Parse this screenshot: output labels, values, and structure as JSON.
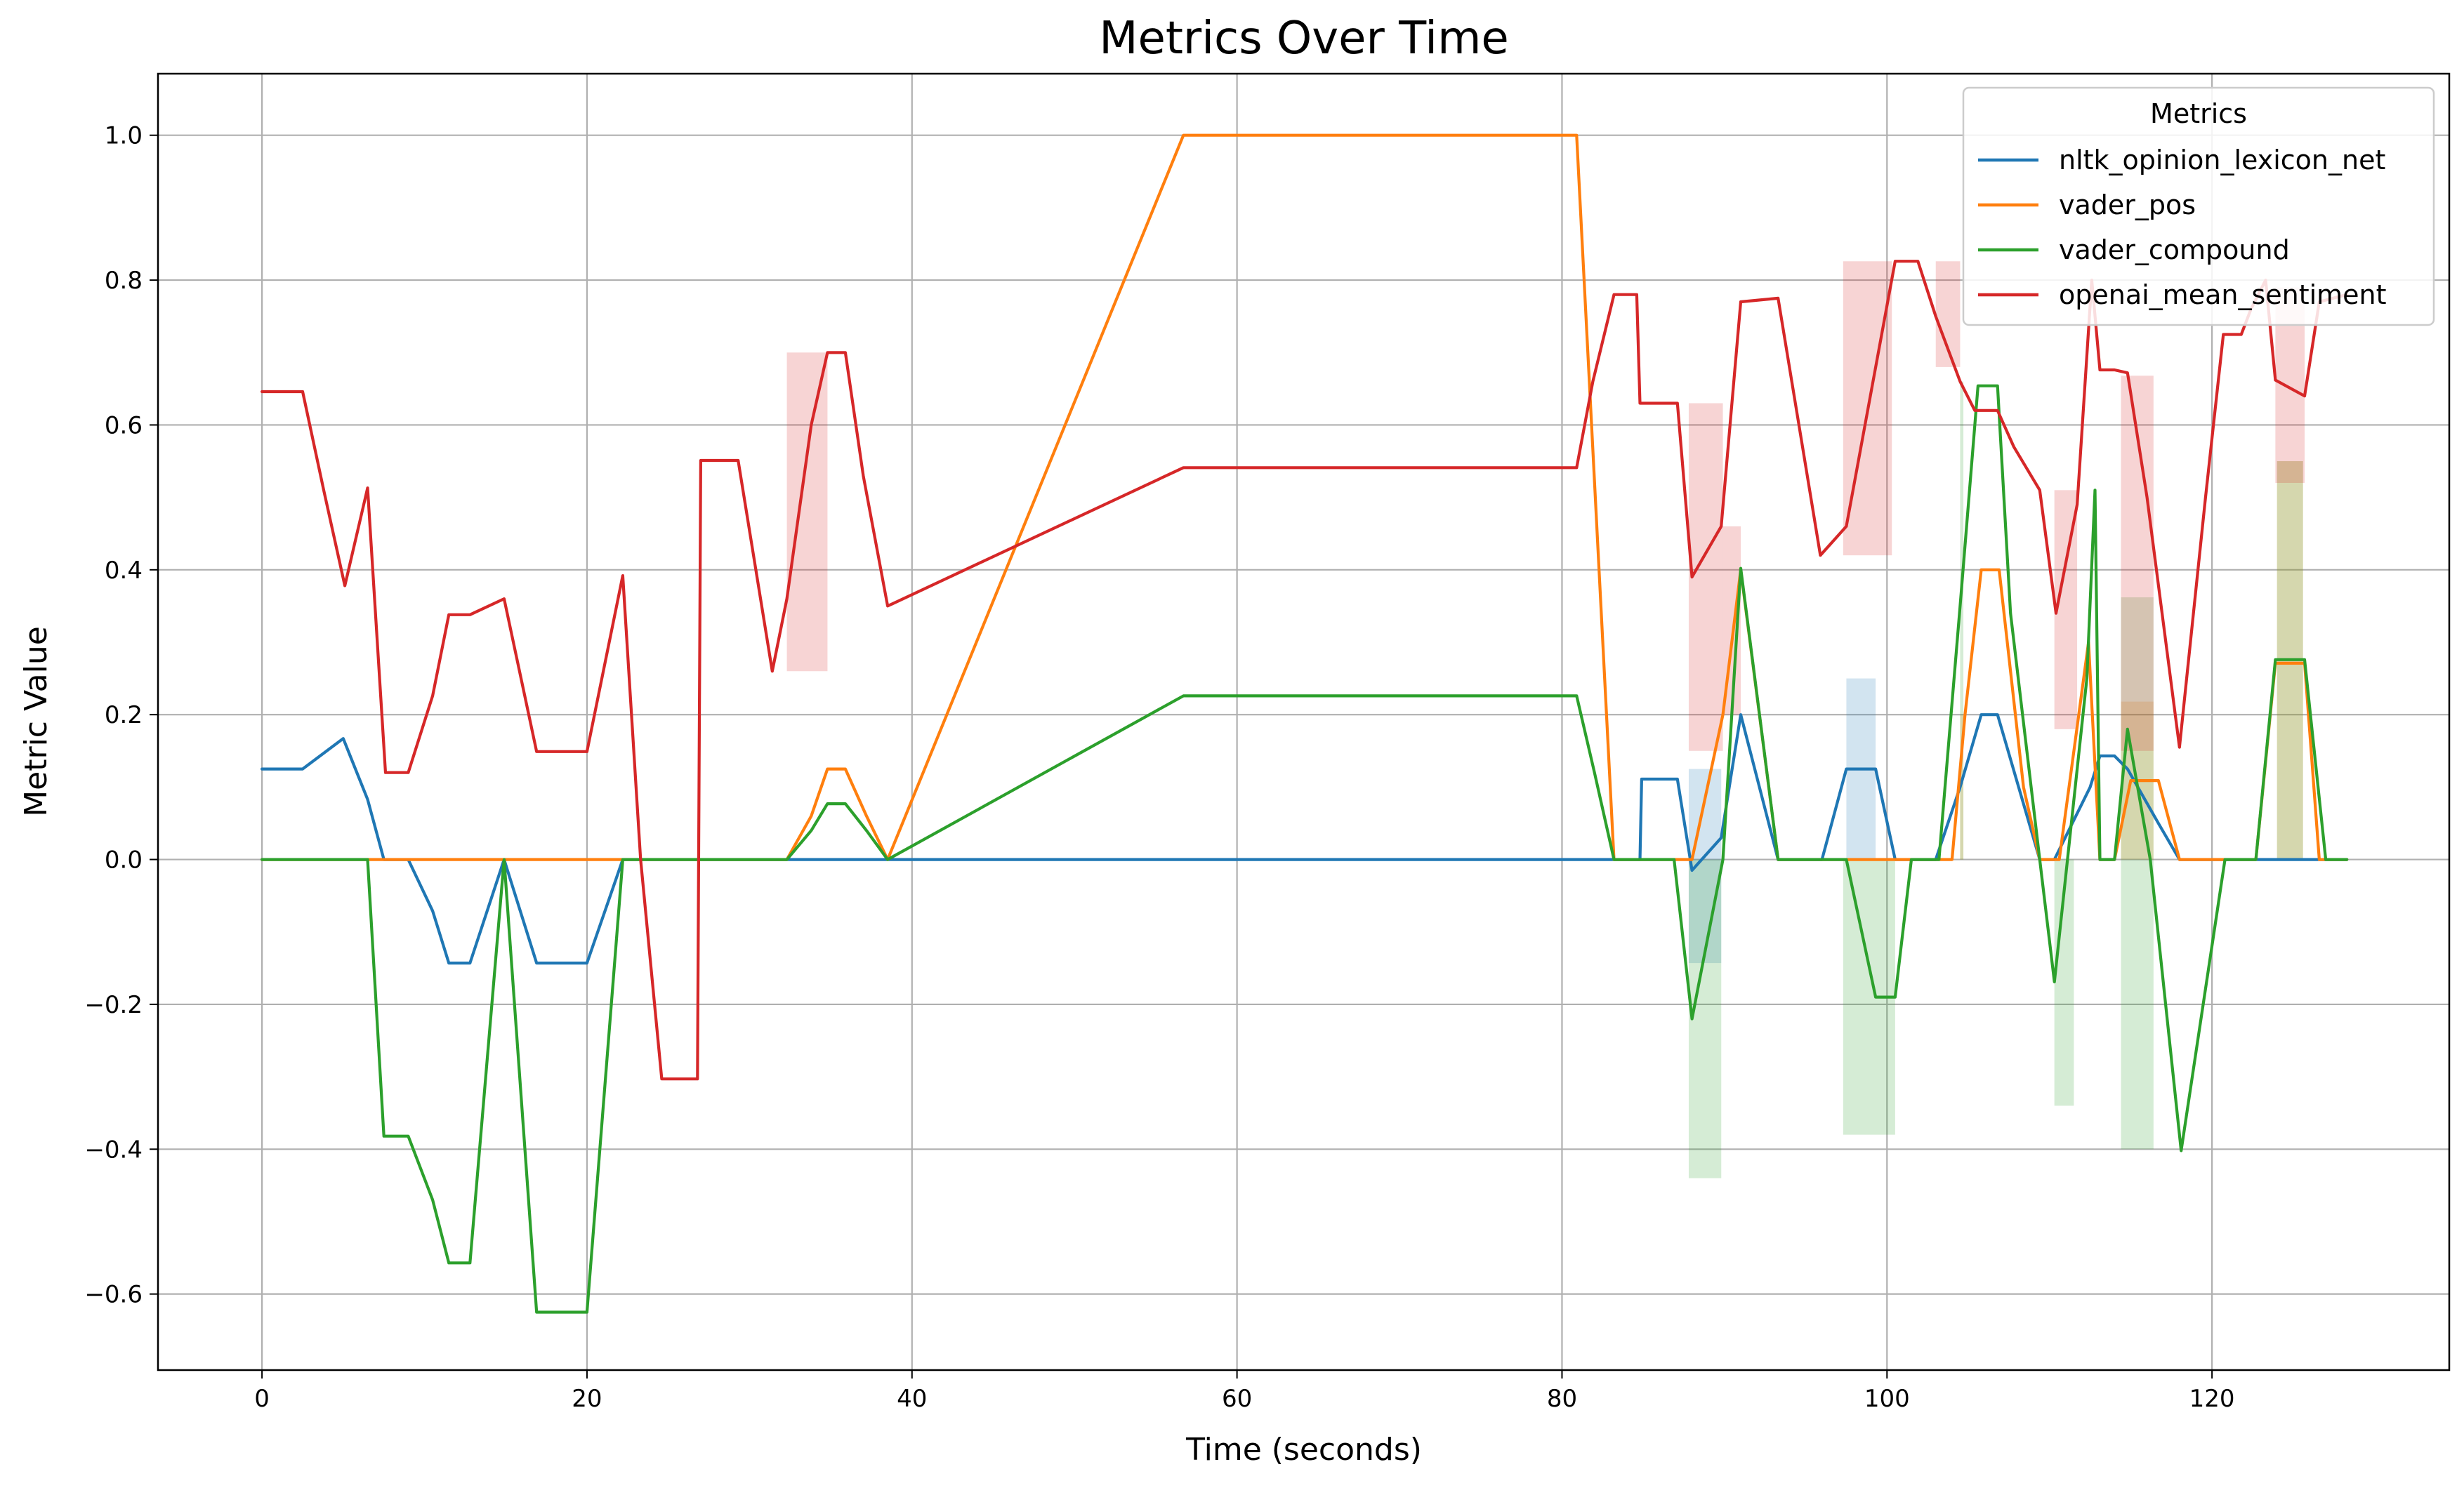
{
  "chart_data": {
    "type": "line",
    "title": "Metrics Over Time",
    "xlabel": "Time (seconds)",
    "ylabel": "Metric Value",
    "xlim": [
      -6.4,
      134.6
    ],
    "ylim": [
      -0.705,
      1.085
    ],
    "xticks": [
      0,
      20,
      40,
      60,
      80,
      100,
      120
    ],
    "yticks": [
      -0.6,
      -0.4,
      -0.2,
      0.0,
      0.2,
      0.4,
      0.6,
      0.8,
      1.0
    ],
    "xtick_labels": [
      "0",
      "20",
      "40",
      "60",
      "80",
      "100",
      "120"
    ],
    "ytick_labels": [
      "−0.6",
      "−0.4",
      "−0.2",
      "0.0",
      "0.2",
      "0.4",
      "0.6",
      "0.8",
      "1.0"
    ],
    "grid": true,
    "legend": {
      "title": "Metrics",
      "placement": "top-right"
    },
    "series": [
      {
        "name": "nltk_opinion_lexicon_net",
        "color": "#1f77b4",
        "points": [
          [
            0,
            0.125
          ],
          [
            2.5,
            0.125
          ],
          [
            5,
            0.167
          ],
          [
            6.5,
            0.083
          ],
          [
            7.5,
            0
          ],
          [
            9,
            0
          ],
          [
            10.5,
            -0.071
          ],
          [
            11.5,
            -0.143
          ],
          [
            12.8,
            -0.143
          ],
          [
            14.9,
            0
          ],
          [
            16.9,
            -0.143
          ],
          [
            20,
            -0.143
          ],
          [
            22.2,
            0
          ],
          [
            80.8,
            0
          ],
          [
            84.8,
            0
          ],
          [
            84.9,
            0.111
          ],
          [
            87.1,
            0.111
          ],
          [
            88.0,
            -0.015
          ],
          [
            89.8,
            0.03
          ],
          [
            91.0,
            0.2
          ],
          [
            93.3,
            0
          ],
          [
            96.0,
            0
          ],
          [
            97.5,
            0.125
          ],
          [
            99.3,
            0.125
          ],
          [
            100.5,
            0
          ],
          [
            102.4,
            0
          ],
          [
            103.0,
            0
          ],
          [
            104.5,
            0.1
          ],
          [
            105.8,
            0.2
          ],
          [
            106.8,
            0.2
          ],
          [
            109.4,
            0
          ],
          [
            110.3,
            0
          ],
          [
            112.5,
            0.1
          ],
          [
            113.1,
            0.143
          ],
          [
            114.0,
            0.143
          ],
          [
            114.8,
            0.125
          ],
          [
            116.7,
            0.05
          ],
          [
            118.0,
            0
          ],
          [
            128.3,
            0
          ]
        ],
        "bands": [
          {
            "x0": 87.8,
            "x1": 89.8,
            "low": -0.143,
            "high": 0.125
          },
          {
            "x0": 97.5,
            "x1": 99.3,
            "low": 0.0,
            "high": 0.25
          }
        ]
      },
      {
        "name": "vader_pos",
        "color": "#ff7f0e",
        "points": [
          [
            0,
            0
          ],
          [
            32.3,
            0
          ],
          [
            33.8,
            0.06
          ],
          [
            34.8,
            0.125
          ],
          [
            35.9,
            0.125
          ],
          [
            37.2,
            0.06
          ],
          [
            38.5,
            0
          ],
          [
            56.7,
            1.0
          ],
          [
            80.9,
            1.0
          ],
          [
            83.2,
            0
          ],
          [
            87.0,
            0
          ],
          [
            88.0,
            0
          ],
          [
            89.9,
            0.2
          ],
          [
            91.0,
            0.4
          ],
          [
            93.3,
            0
          ],
          [
            102.0,
            0
          ],
          [
            104.0,
            0
          ],
          [
            104.8,
            0.2
          ],
          [
            105.8,
            0.4
          ],
          [
            106.9,
            0.4
          ],
          [
            108.4,
            0.1
          ],
          [
            109.4,
            0
          ],
          [
            110.6,
            0
          ],
          [
            112.4,
            0.3
          ],
          [
            113.1,
            0
          ],
          [
            114.0,
            0
          ],
          [
            115.0,
            0.109
          ],
          [
            116.7,
            0.109
          ],
          [
            118.0,
            0
          ],
          [
            120.8,
            0
          ],
          [
            122.7,
            0
          ],
          [
            123.9,
            0.271
          ],
          [
            125.7,
            0.271
          ],
          [
            126.6,
            0
          ],
          [
            128.3,
            0
          ]
        ],
        "bands": [
          {
            "x0": 104.5,
            "x1": 104.7,
            "low": 0.0,
            "high": 0.2
          },
          {
            "x0": 114.4,
            "x1": 116.4,
            "low": 0.0,
            "high": 0.218
          },
          {
            "x0": 124.0,
            "x1": 125.6,
            "low": 0.0,
            "high": 0.55
          }
        ]
      },
      {
        "name": "vader_compound",
        "color": "#2ca02c",
        "points": [
          [
            0,
            0
          ],
          [
            6.5,
            0
          ],
          [
            7.5,
            -0.382
          ],
          [
            9,
            -0.382
          ],
          [
            10.5,
            -0.47
          ],
          [
            11.5,
            -0.557
          ],
          [
            12.8,
            -0.557
          ],
          [
            14.9,
            0
          ],
          [
            16.9,
            -0.625
          ],
          [
            20,
            -0.625
          ],
          [
            22.2,
            0
          ],
          [
            32.3,
            0
          ],
          [
            33.8,
            0.04
          ],
          [
            34.8,
            0.077
          ],
          [
            35.9,
            0.077
          ],
          [
            37.2,
            0.04
          ],
          [
            38.5,
            0
          ],
          [
            56.7,
            0.226
          ],
          [
            80.9,
            0.226
          ],
          [
            82.0,
            0.12
          ],
          [
            83.2,
            0
          ],
          [
            85.8,
            0
          ],
          [
            86.9,
            0
          ],
          [
            88.0,
            -0.22
          ],
          [
            89.9,
            0
          ],
          [
            91.0,
            0.402
          ],
          [
            93.3,
            0
          ],
          [
            96.0,
            0
          ],
          [
            97.5,
            0
          ],
          [
            99.3,
            -0.19
          ],
          [
            100.5,
            -0.19
          ],
          [
            101.5,
            0
          ],
          [
            102.4,
            0
          ],
          [
            103.2,
            0
          ],
          [
            104.5,
            0.35
          ],
          [
            105.6,
            0.654
          ],
          [
            106.8,
            0.654
          ],
          [
            107.6,
            0.34
          ],
          [
            109.4,
            0
          ],
          [
            110.3,
            -0.169
          ],
          [
            112.3,
            0.25
          ],
          [
            112.8,
            0.51
          ],
          [
            113.1,
            0
          ],
          [
            114.0,
            0
          ],
          [
            114.8,
            0.18
          ],
          [
            116.2,
            0
          ],
          [
            118.1,
            -0.402
          ],
          [
            120.8,
            0
          ],
          [
            122.7,
            0
          ],
          [
            123.9,
            0.276
          ],
          [
            125.7,
            0.276
          ],
          [
            127.0,
            0
          ],
          [
            128.3,
            0
          ]
        ],
        "bands": [
          {
            "x0": 87.8,
            "x1": 89.8,
            "low": -0.44,
            "high": 0.0
          },
          {
            "x0": 97.3,
            "x1": 100.5,
            "low": -0.38,
            "high": 0.0
          },
          {
            "x0": 104.5,
            "x1": 104.7,
            "low": 0.0,
            "high": 0.66
          },
          {
            "x0": 110.3,
            "x1": 111.5,
            "low": -0.34,
            "high": 0.0
          },
          {
            "x0": 114.4,
            "x1": 116.4,
            "low": -0.4,
            "high": 0.362
          },
          {
            "x0": 124.0,
            "x1": 125.6,
            "low": 0.0,
            "high": 0.55
          }
        ]
      },
      {
        "name": "openai_mean_sentiment",
        "color": "#d62728",
        "points": [
          [
            0,
            0.646
          ],
          [
            2.5,
            0.646
          ],
          [
            3.8,
            0.51
          ],
          [
            5.1,
            0.378
          ],
          [
            6.5,
            0.513
          ],
          [
            7.6,
            0.12
          ],
          [
            9,
            0.12
          ],
          [
            10.5,
            0.226
          ],
          [
            11.5,
            0.338
          ],
          [
            12.8,
            0.338
          ],
          [
            14.9,
            0.36
          ],
          [
            16.9,
            0.149
          ],
          [
            20,
            0.149
          ],
          [
            22.2,
            0.392
          ],
          [
            23.3,
            0
          ],
          [
            24.6,
            -0.303
          ],
          [
            26.8,
            -0.303
          ],
          [
            27.0,
            0.551
          ],
          [
            29.3,
            0.551
          ],
          [
            31.4,
            0.26
          ],
          [
            32.3,
            0.36
          ],
          [
            33.8,
            0.6
          ],
          [
            34.8,
            0.7
          ],
          [
            35.9,
            0.7
          ],
          [
            37.0,
            0.53
          ],
          [
            38.5,
            0.35
          ],
          [
            56.7,
            0.541
          ],
          [
            80.9,
            0.541
          ],
          [
            81.9,
            0.66
          ],
          [
            83.2,
            0.78
          ],
          [
            84.6,
            0.78
          ],
          [
            84.8,
            0.63
          ],
          [
            87.1,
            0.63
          ],
          [
            88.0,
            0.39
          ],
          [
            89.8,
            0.46
          ],
          [
            91.0,
            0.77
          ],
          [
            93.3,
            0.775
          ],
          [
            95.9,
            0.42
          ],
          [
            97.5,
            0.46
          ],
          [
            100.5,
            0.826
          ],
          [
            101.9,
            0.826
          ],
          [
            103.0,
            0.75
          ],
          [
            104.5,
            0.66
          ],
          [
            105.4,
            0.62
          ],
          [
            106.8,
            0.62
          ],
          [
            107.8,
            0.57
          ],
          [
            109.4,
            0.51
          ],
          [
            110.4,
            0.34
          ],
          [
            111.7,
            0.49
          ],
          [
            112.6,
            0.8
          ],
          [
            113.1,
            0.676
          ],
          [
            114.0,
            0.676
          ],
          [
            114.8,
            0.672
          ],
          [
            116.0,
            0.5
          ],
          [
            118.0,
            0.155
          ],
          [
            119.6,
            0.5
          ],
          [
            120.7,
            0.725
          ],
          [
            121.8,
            0.725
          ],
          [
            122.4,
            0.76
          ],
          [
            123.3,
            0.8
          ],
          [
            123.9,
            0.662
          ],
          [
            125.7,
            0.64
          ],
          [
            126.6,
            0.77
          ],
          [
            128.3,
            0.78
          ]
        ],
        "bands": [
          {
            "x0": 32.3,
            "x1": 34.8,
            "low": 0.26,
            "high": 0.7
          },
          {
            "x0": 87.8,
            "x1": 89.9,
            "low": 0.15,
            "high": 0.63
          },
          {
            "x0": 89.9,
            "x1": 91.0,
            "low": 0.2,
            "high": 0.46
          },
          {
            "x0": 97.3,
            "x1": 100.3,
            "low": 0.42,
            "high": 0.826
          },
          {
            "x0": 103.0,
            "x1": 104.5,
            "low": 0.68,
            "high": 0.826
          },
          {
            "x0": 110.3,
            "x1": 111.7,
            "low": 0.18,
            "high": 0.51
          },
          {
            "x0": 114.4,
            "x1": 116.4,
            "low": 0.15,
            "high": 0.668
          },
          {
            "x0": 123.9,
            "x1": 125.7,
            "low": 0.52,
            "high": 0.79
          }
        ]
      }
    ]
  }
}
